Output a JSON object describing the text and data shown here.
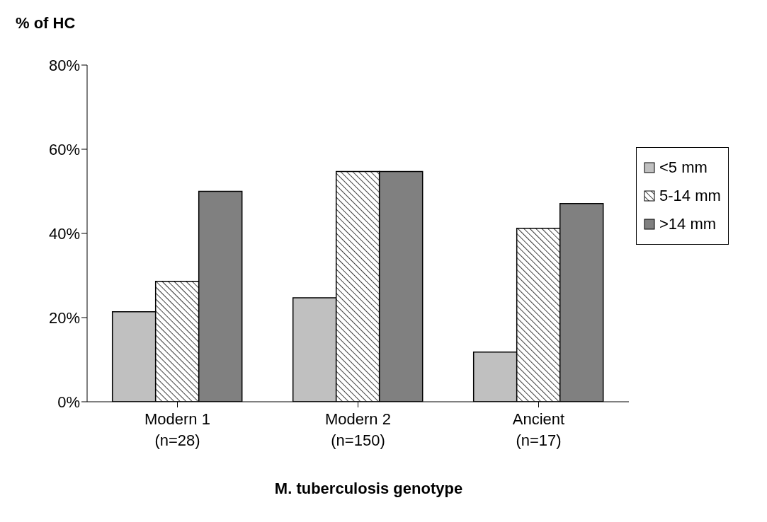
{
  "chart_data": {
    "type": "bar",
    "ylabel": "% of HC",
    "xlabel": "M. tuberculosis genotype",
    "categories": [
      "Modern 1\n(n=28)",
      "Modern 2\n(n=150)",
      "Ancient\n(n=17)"
    ],
    "series": [
      {
        "name": "<5 mm",
        "color": "#c0c0c0",
        "values": [
          21.4,
          24.7,
          11.8
        ]
      },
      {
        "name": "5-14 mm",
        "color": "#000000",
        "values": [
          28.6,
          54.7,
          41.2
        ]
      },
      {
        "name": ">14 mm",
        "color": "#808080",
        "values": [
          50,
          54.7,
          47.1
        ]
      }
    ],
    "ylim": [
      0,
      80
    ],
    "yticks": [
      {
        "value": 0,
        "label": "0%"
      },
      {
        "value": 20,
        "label": "20%"
      },
      {
        "value": 40,
        "label": "40%"
      },
      {
        "value": 60,
        "label": "60%"
      },
      {
        "value": 80,
        "label": "80%"
      }
    ],
    "grid": false,
    "legend": "right"
  }
}
